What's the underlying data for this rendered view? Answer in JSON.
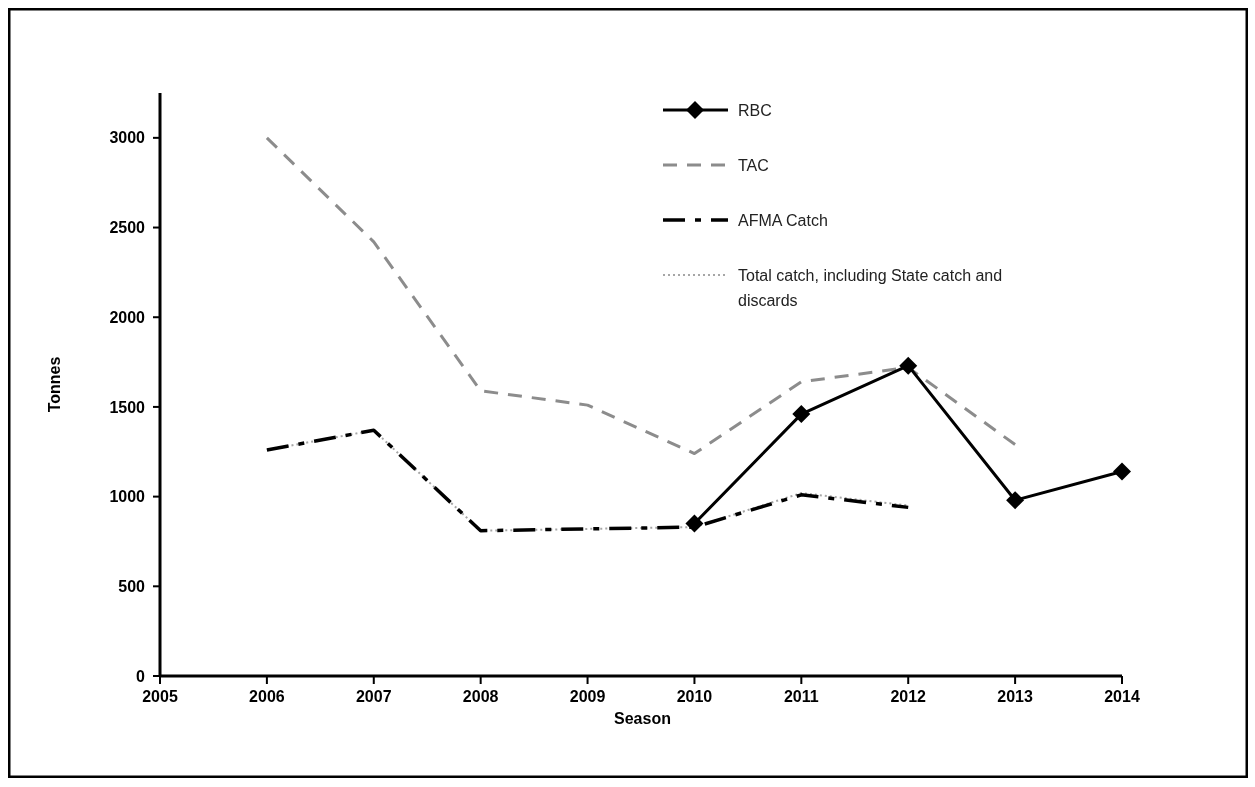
{
  "chart_data": {
    "type": "line",
    "xlabel": "Season",
    "ylabel": "Tonnes",
    "x": [
      2006,
      2007,
      2008,
      2009,
      2010,
      2011,
      2012,
      2013,
      2014
    ],
    "xlim": [
      2005,
      2014
    ],
    "xticks": [
      2005,
      2006,
      2007,
      2008,
      2009,
      2010,
      2011,
      2012,
      2013,
      2014
    ],
    "ylim": [
      0,
      3250
    ],
    "yticks": [
      0,
      500,
      1000,
      1500,
      2000,
      2500,
      3000
    ],
    "grid": false,
    "legend": "top",
    "series": [
      {
        "name": "RBC",
        "color": "#000000",
        "line_style": "solid",
        "marker": "diamond",
        "values": [
          null,
          null,
          null,
          null,
          850,
          1460,
          1730,
          980,
          1140
        ]
      },
      {
        "name": "TAC",
        "color": "#8c8c8c",
        "line_style": "dashed",
        "marker": "none",
        "values": [
          3000,
          2420,
          1590,
          1510,
          1240,
          1640,
          1720,
          1290,
          null
        ]
      },
      {
        "name": "AFMA Catch",
        "color": "#000000",
        "line_style": "dashdot",
        "marker": "none",
        "values": [
          1260,
          1370,
          810,
          820,
          830,
          1010,
          940,
          null,
          null
        ]
      },
      {
        "name": "Total catch, including State catch and discards",
        "color": "#a6a6a6",
        "line_style": "dotted",
        "marker": "none",
        "values": [
          1260,
          1370,
          810,
          820,
          830,
          1020,
          950,
          null,
          null
        ]
      }
    ]
  }
}
